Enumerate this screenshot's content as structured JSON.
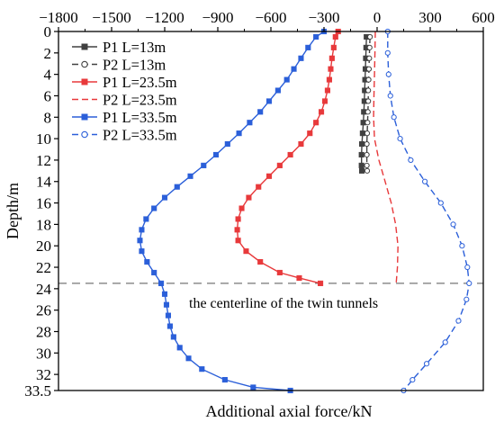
{
  "chart_data": {
    "type": "line",
    "xlabel": "Additional axial force/kN",
    "ylabel": "Depth/m",
    "xlim": [
      -1800,
      600
    ],
    "ylim": [
      0,
      33.5
    ],
    "y_inverted": true,
    "x_axis_position": "top",
    "x_ticks": [
      -1800,
      -1500,
      -1200,
      -900,
      -600,
      -300,
      0,
      300,
      600
    ],
    "y_ticks": [
      0,
      2,
      4,
      6,
      8,
      10,
      12,
      14,
      16,
      18,
      20,
      22,
      24,
      26,
      28,
      30,
      32,
      33.5
    ],
    "x_tick_labels": [
      "−1800",
      "−1500",
      "−1200",
      "−900",
      "−600",
      "−300",
      "0",
      "300",
      "600"
    ],
    "y_tick_labels": [
      "0",
      "2",
      "4",
      "6",
      "8",
      "10",
      "12",
      "14",
      "16",
      "18",
      "20",
      "22",
      "24",
      "26",
      "28",
      "30",
      "32",
      "33.5"
    ],
    "grid": false,
    "legend_position": "top-left",
    "reference_line": {
      "depth": 23.5,
      "style": "dashed",
      "color": "#777777"
    },
    "annotation": "the centerline of the twin tunnels",
    "series": [
      {
        "name": "P1 L=13m",
        "color": "#404040",
        "style": "solid",
        "marker": "square-filled",
        "points": [
          [
            -60,
            0.5
          ],
          [
            -62,
            1.5
          ],
          [
            -64,
            2.5
          ],
          [
            -66,
            3.5
          ],
          [
            -68,
            4.5
          ],
          [
            -70,
            5.5
          ],
          [
            -72,
            6.5
          ],
          [
            -75,
            7.5
          ],
          [
            -78,
            8.5
          ],
          [
            -82,
            9.5
          ],
          [
            -86,
            10.5
          ],
          [
            -88,
            11.5
          ],
          [
            -88,
            12.5
          ],
          [
            -86,
            13.0
          ]
        ]
      },
      {
        "name": "P2 L=13m",
        "color": "#404040",
        "style": "dashed",
        "marker": "circle-open",
        "points": [
          [
            -40,
            0.5
          ],
          [
            -42,
            1.5
          ],
          [
            -44,
            2.5
          ],
          [
            -46,
            3.5
          ],
          [
            -48,
            4.5
          ],
          [
            -50,
            5.5
          ],
          [
            -50,
            6.5
          ],
          [
            -52,
            7.5
          ],
          [
            -54,
            8.5
          ],
          [
            -56,
            9.5
          ],
          [
            -58,
            10.5
          ],
          [
            -58,
            11.5
          ],
          [
            -58,
            12.5
          ],
          [
            -56,
            13.0
          ]
        ]
      },
      {
        "name": "P1 L=23.5m",
        "color": "#e8393b",
        "style": "solid",
        "marker": "square-filled",
        "points": [
          [
            -220,
            0
          ],
          [
            -235,
            0.5
          ],
          [
            -245,
            1.5
          ],
          [
            -255,
            2.5
          ],
          [
            -262,
            3.5
          ],
          [
            -270,
            4.5
          ],
          [
            -280,
            5.5
          ],
          [
            -295,
            6.5
          ],
          [
            -315,
            7.5
          ],
          [
            -345,
            8.5
          ],
          [
            -380,
            9.5
          ],
          [
            -430,
            10.5
          ],
          [
            -490,
            11.5
          ],
          [
            -550,
            12.5
          ],
          [
            -610,
            13.5
          ],
          [
            -670,
            14.5
          ],
          [
            -725,
            15.5
          ],
          [
            -765,
            16.5
          ],
          [
            -785,
            17.5
          ],
          [
            -790,
            18.5
          ],
          [
            -785,
            19.5
          ],
          [
            -740,
            20.5
          ],
          [
            -660,
            21.5
          ],
          [
            -550,
            22.5
          ],
          [
            -440,
            23.0
          ],
          [
            -320,
            23.5
          ]
        ]
      },
      {
        "name": "P2 L=23.5m",
        "color": "#e8393b",
        "style": "dashed",
        "marker": "none",
        "points": [
          [
            -10,
            0
          ],
          [
            -12,
            2
          ],
          [
            -15,
            4
          ],
          [
            -18,
            6
          ],
          [
            -20,
            8
          ],
          [
            -15,
            10
          ],
          [
            10,
            12
          ],
          [
            45,
            14
          ],
          [
            80,
            16
          ],
          [
            105,
            18
          ],
          [
            118,
            20
          ],
          [
            115,
            22
          ],
          [
            108,
            23.5
          ]
        ]
      },
      {
        "name": "P1 L=33.5m",
        "color": "#2b5fd9",
        "style": "solid",
        "marker": "square-filled",
        "points": [
          [
            -300,
            0
          ],
          [
            -345,
            0.5
          ],
          [
            -390,
            1.5
          ],
          [
            -430,
            2.5
          ],
          [
            -470,
            3.5
          ],
          [
            -510,
            4.5
          ],
          [
            -560,
            5.5
          ],
          [
            -610,
            6.5
          ],
          [
            -660,
            7.5
          ],
          [
            -720,
            8.5
          ],
          [
            -780,
            9.5
          ],
          [
            -845,
            10.5
          ],
          [
            -910,
            11.5
          ],
          [
            -980,
            12.5
          ],
          [
            -1055,
            13.5
          ],
          [
            -1130,
            14.5
          ],
          [
            -1200,
            15.5
          ],
          [
            -1260,
            16.5
          ],
          [
            -1305,
            17.5
          ],
          [
            -1330,
            18.5
          ],
          [
            -1340,
            19.5
          ],
          [
            -1330,
            20.5
          ],
          [
            -1300,
            21.5
          ],
          [
            -1260,
            22.5
          ],
          [
            -1220,
            23.5
          ],
          [
            -1200,
            24.5
          ],
          [
            -1190,
            25.5
          ],
          [
            -1180,
            26.5
          ],
          [
            -1170,
            27.5
          ],
          [
            -1150,
            28.5
          ],
          [
            -1115,
            29.5
          ],
          [
            -1065,
            30.5
          ],
          [
            -990,
            31.5
          ],
          [
            -860,
            32.5
          ],
          [
            -700,
            33.2
          ],
          [
            -490,
            33.5
          ]
        ]
      },
      {
        "name": "P2 L=33.5m",
        "color": "#2b5fd9",
        "style": "dashed",
        "marker": "circle-open",
        "points": [
          [
            60,
            0
          ],
          [
            60,
            2
          ],
          [
            65,
            4
          ],
          [
            75,
            6
          ],
          [
            95,
            8
          ],
          [
            130,
            10
          ],
          [
            190,
            12
          ],
          [
            270,
            14
          ],
          [
            360,
            16
          ],
          [
            430,
            18
          ],
          [
            480,
            20
          ],
          [
            510,
            22
          ],
          [
            520,
            23.5
          ],
          [
            505,
            25
          ],
          [
            460,
            27
          ],
          [
            385,
            29
          ],
          [
            280,
            31
          ],
          [
            200,
            32.5
          ],
          [
            150,
            33.5
          ]
        ]
      }
    ]
  }
}
